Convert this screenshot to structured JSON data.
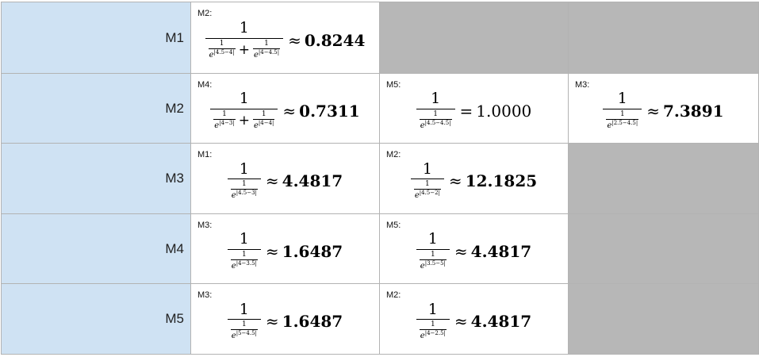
{
  "rows": [
    {
      "label": "M1",
      "cells": [
        {
          "tag": "M2:",
          "num": "1",
          "minis": [
            {
              "n": "1",
              "base": "e",
              "exp": "|4.5−4|"
            },
            {
              "n": "1",
              "base": "e",
              "exp": "|4−4.5|"
            }
          ],
          "rel": "≈",
          "value": "0.8244",
          "bold": true
        },
        null,
        null
      ]
    },
    {
      "label": "M2",
      "cells": [
        {
          "tag": "M4:",
          "num": "1",
          "minis": [
            {
              "n": "1",
              "base": "e",
              "exp": "|4−3|"
            },
            {
              "n": "1",
              "base": "e",
              "exp": "|4−4|"
            }
          ],
          "rel": "≈",
          "value": "0.7311",
          "bold": true
        },
        {
          "tag": "M5:",
          "num": "1",
          "minis": [
            {
              "n": "1",
              "base": "e",
              "exp": "|4.5−4.5|"
            }
          ],
          "rel": "=",
          "value": "1.0000",
          "bold": false
        },
        {
          "tag": "M3:",
          "num": "1",
          "minis": [
            {
              "n": "1",
              "base": "e",
              "exp": "|2.5−4.5|"
            }
          ],
          "rel": "≈",
          "value": "7.3891",
          "bold": true
        }
      ]
    },
    {
      "label": "M3",
      "cells": [
        {
          "tag": "M1:",
          "num": "1",
          "minis": [
            {
              "n": "1",
              "base": "e",
              "exp": "|4.5−3|"
            }
          ],
          "rel": "≈",
          "value": "4.4817",
          "bold": true
        },
        {
          "tag": "M2:",
          "num": "1",
          "minis": [
            {
              "n": "1",
              "base": "e",
              "exp": "|4.5−2|"
            }
          ],
          "rel": "≈",
          "value": "12.1825",
          "bold": true
        },
        null
      ]
    },
    {
      "label": "M4",
      "cells": [
        {
          "tag": "M3:",
          "num": "1",
          "minis": [
            {
              "n": "1",
              "base": "e",
              "exp": "|4−3.5|"
            }
          ],
          "rel": "≈",
          "value": "1.6487",
          "bold": true
        },
        {
          "tag": "M5:",
          "num": "1",
          "minis": [
            {
              "n": "1",
              "base": "e",
              "exp": "|3.5−5|"
            }
          ],
          "rel": "≈",
          "value": "4.4817",
          "bold": true
        },
        null
      ]
    },
    {
      "label": "M5",
      "cells": [
        {
          "tag": "M3:",
          "num": "1",
          "minis": [
            {
              "n": "1",
              "base": "e",
              "exp": "|5−4.5|"
            }
          ],
          "rel": "≈",
          "value": "1.6487",
          "bold": true
        },
        {
          "tag": "M2:",
          "num": "1",
          "minis": [
            {
              "n": "1",
              "base": "e",
              "exp": "|4−2.5|"
            }
          ],
          "rel": "≈",
          "value": "4.4817",
          "bold": true
        },
        null
      ]
    }
  ]
}
